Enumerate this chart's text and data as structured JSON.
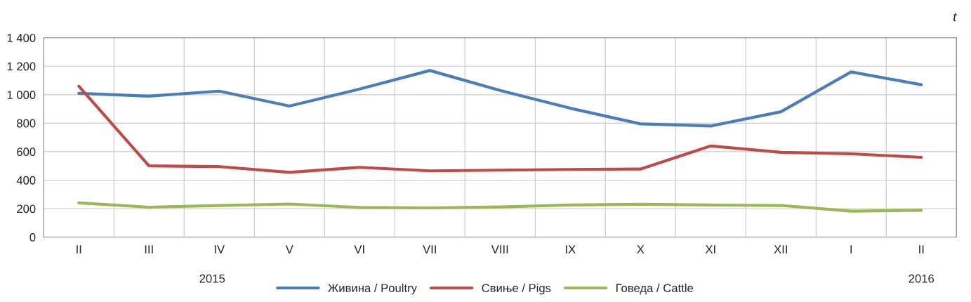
{
  "chart_data": {
    "type": "line",
    "categories": [
      "II",
      "III",
      "IV",
      "V",
      "VI",
      "VII",
      "VIII",
      "IX",
      "X",
      "XI",
      "XII",
      "I",
      "II"
    ],
    "series": [
      {
        "name": "Живина / Poultry",
        "color": "#4a7ebb",
        "values": [
          1010,
          990,
          1025,
          920,
          1040,
          1170,
          1030,
          905,
          795,
          780,
          880,
          1160,
          1070
        ]
      },
      {
        "name": "Свиње / Pigs",
        "color": "#be4b48",
        "values": [
          1060,
          500,
          495,
          455,
          490,
          465,
          470,
          475,
          478,
          640,
          595,
          585,
          560
        ]
      },
      {
        "name": "Говеда / Cattle",
        "color": "#98b954",
        "values": [
          240,
          210,
          222,
          232,
          208,
          205,
          212,
          225,
          230,
          225,
          222,
          182,
          188
        ]
      }
    ],
    "ylabel": "t",
    "ylim": [
      0,
      1400
    ],
    "yticks": [
      0,
      200,
      400,
      600,
      800,
      {
        "value": 1000,
        "label": "1 000"
      },
      {
        "value": 1200,
        "label": "1 200"
      },
      {
        "value": 1400,
        "label": "1 400"
      }
    ],
    "annotations": [
      "2015",
      "2016"
    ],
    "grid": true,
    "legend": "bottom",
    "marker": "none",
    "line_style": "solid"
  }
}
